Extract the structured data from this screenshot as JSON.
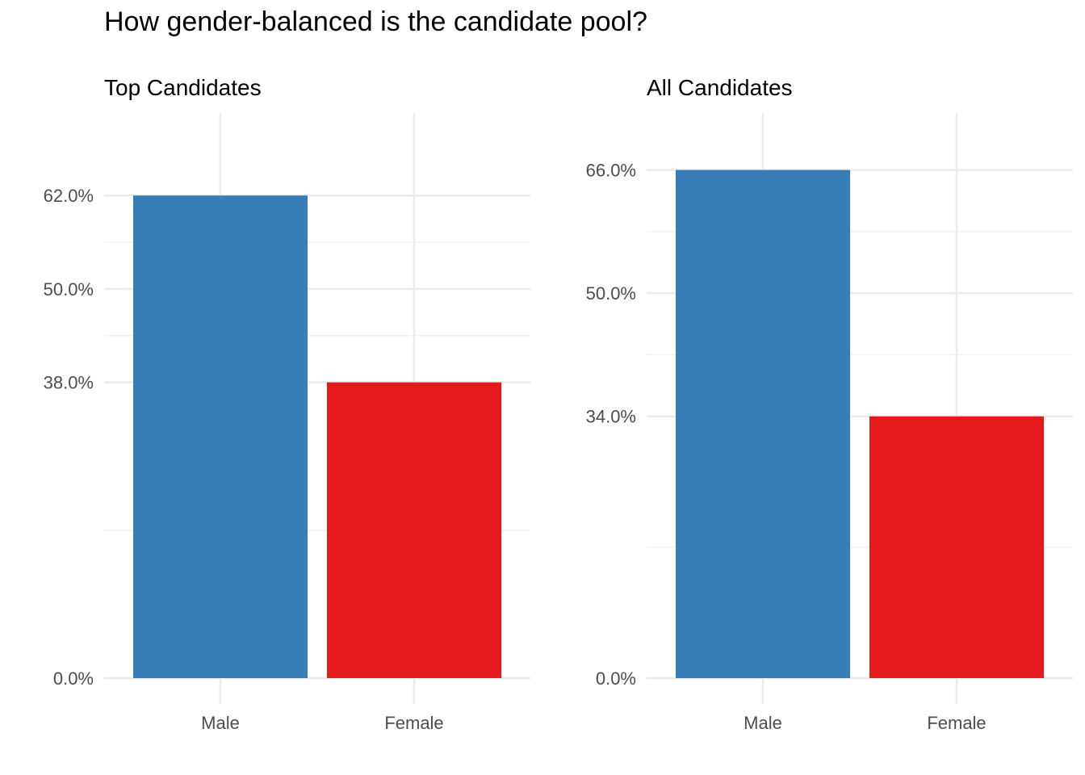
{
  "chart_data": [
    {
      "type": "bar",
      "title": "How gender-balanced is the candidate pool?",
      "subtitle": "Top Candidates",
      "categories": [
        "Male",
        "Female"
      ],
      "values": [
        62.0,
        38.0
      ],
      "colors": [
        "#377EB8",
        "#E41A1C"
      ],
      "yticks": [
        0,
        38,
        50,
        62
      ],
      "ytick_labels": [
        "0.0%",
        "38.0%",
        "50.0%",
        "62.0%"
      ],
      "yminor": [
        19,
        44,
        56
      ],
      "ylim": [
        0,
        72.6
      ],
      "grid": true,
      "xlabel": "",
      "ylabel": ""
    },
    {
      "type": "bar",
      "subtitle": "All Candidates",
      "categories": [
        "Male",
        "Female"
      ],
      "values": [
        66.0,
        34.0
      ],
      "colors": [
        "#377EB8",
        "#E41A1C"
      ],
      "yticks": [
        0,
        34,
        50,
        66
      ],
      "ytick_labels": [
        "0.0%",
        "34.0%",
        "50.0%",
        "66.0%"
      ],
      "yminor": [
        17,
        42,
        58
      ],
      "ylim": [
        0,
        73.4
      ],
      "grid": true,
      "xlabel": "",
      "ylabel": ""
    }
  ]
}
